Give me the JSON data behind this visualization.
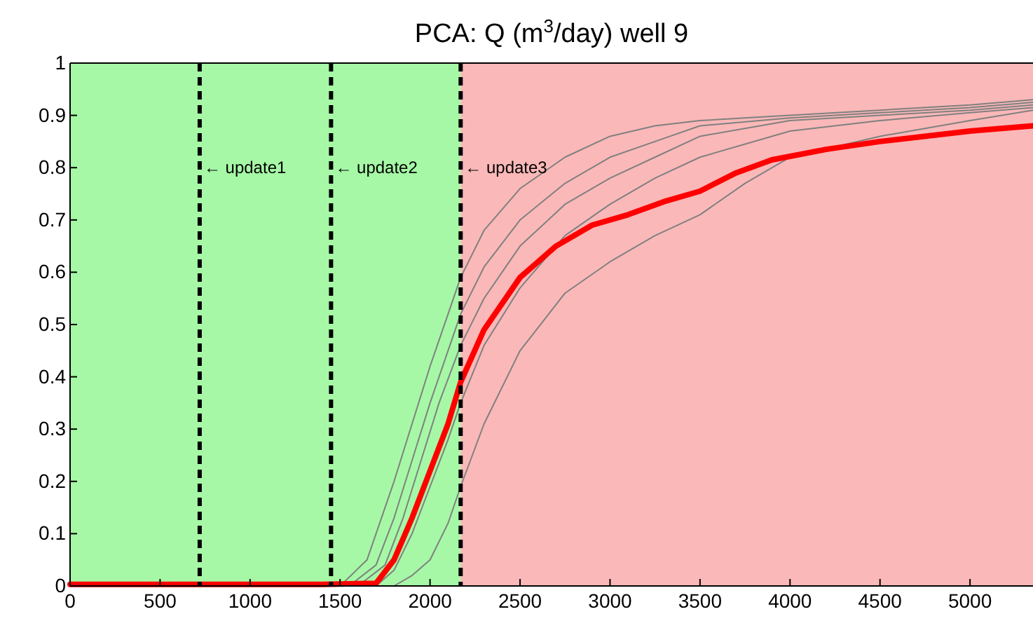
{
  "chart_data": {
    "type": "line",
    "title": "PCA: Q (m$^{3}$/day) well 9",
    "xlim": [
      0,
      5350
    ],
    "xticks": [
      0,
      500,
      1000,
      1500,
      2000,
      2500,
      3000,
      3500,
      4000,
      4500,
      5000
    ],
    "ylim": [
      0,
      1
    ],
    "yticks": [
      0,
      0.1,
      0.2,
      0.3,
      0.4,
      0.5,
      0.6,
      0.7,
      0.8,
      0.9,
      1
    ],
    "grid": false,
    "marker": "none",
    "line_style": "solid",
    "bands": [
      {
        "axis": "x",
        "from": 0,
        "to": 2170,
        "color": "#a6f8a6"
      },
      {
        "axis": "x",
        "from": 2170,
        "to": 5350,
        "color": "#fbb8b8"
      }
    ],
    "ref_lines": [
      {
        "axis": "x",
        "value": 720,
        "label": "← update1",
        "color": "#000000",
        "line_style": "dashed"
      },
      {
        "axis": "x",
        "value": 1450,
        "label": "← update2",
        "color": "#000000",
        "line_style": "dashed"
      },
      {
        "axis": "x",
        "value": 2170,
        "label": "← update3",
        "color": "#000000",
        "line_style": "dashed"
      }
    ],
    "series": [
      {
        "color": "#808080",
        "x": [
          1500,
          1650,
          1800,
          1900,
          2000,
          2170,
          2300,
          2500,
          2750,
          3000,
          3250,
          3500,
          4000,
          4500,
          5000,
          5350
        ],
        "values": [
          0,
          0.05,
          0.2,
          0.31,
          0.42,
          0.59,
          0.68,
          0.76,
          0.82,
          0.86,
          0.88,
          0.89,
          0.9,
          0.91,
          0.92,
          0.93
        ]
      },
      {
        "color": "#808080",
        "x": [
          1550,
          1700,
          1800,
          1900,
          2000,
          2170,
          2300,
          2500,
          2750,
          3000,
          3250,
          3500,
          4000,
          4500,
          5000,
          5350
        ],
        "values": [
          0,
          0.04,
          0.13,
          0.24,
          0.35,
          0.52,
          0.61,
          0.7,
          0.77,
          0.82,
          0.85,
          0.88,
          0.895,
          0.905,
          0.915,
          0.925
        ]
      },
      {
        "color": "#808080",
        "x": [
          1600,
          1750,
          1850,
          1950,
          2050,
          2170,
          2300,
          2500,
          2750,
          3000,
          3250,
          3500,
          4000,
          4500,
          5000,
          5350
        ],
        "values": [
          0,
          0.04,
          0.13,
          0.24,
          0.35,
          0.46,
          0.55,
          0.65,
          0.73,
          0.78,
          0.82,
          0.86,
          0.89,
          0.9,
          0.91,
          0.92
        ]
      },
      {
        "color": "#808080",
        "x": [
          1700,
          1800,
          1900,
          2000,
          2100,
          2170,
          2300,
          2500,
          2750,
          3000,
          3250,
          3500,
          4000,
          4500,
          5000,
          5350
        ],
        "values": [
          0,
          0.03,
          0.1,
          0.19,
          0.28,
          0.35,
          0.46,
          0.57,
          0.67,
          0.73,
          0.78,
          0.82,
          0.87,
          0.89,
          0.905,
          0.915
        ]
      },
      {
        "color": "#808080",
        "x": [
          1800,
          1900,
          2000,
          2100,
          2170,
          2300,
          2500,
          2750,
          3000,
          3250,
          3500,
          3750,
          4000,
          4500,
          5000,
          5350
        ],
        "values": [
          0,
          0.02,
          0.05,
          0.12,
          0.19,
          0.31,
          0.45,
          0.56,
          0.62,
          0.67,
          0.71,
          0.77,
          0.82,
          0.86,
          0.89,
          0.91
        ]
      },
      {
        "color": "#ff0000",
        "x": [
          0,
          1400,
          1700,
          1800,
          1900,
          2000,
          2100,
          2170,
          2300,
          2500,
          2700,
          2900,
          3100,
          3300,
          3500,
          3700,
          3900,
          4200,
          4500,
          5000,
          5350
        ],
        "values": [
          0.003,
          0.003,
          0.005,
          0.05,
          0.13,
          0.22,
          0.31,
          0.39,
          0.49,
          0.59,
          0.65,
          0.69,
          0.71,
          0.735,
          0.755,
          0.79,
          0.815,
          0.835,
          0.85,
          0.87,
          0.88
        ]
      }
    ]
  }
}
